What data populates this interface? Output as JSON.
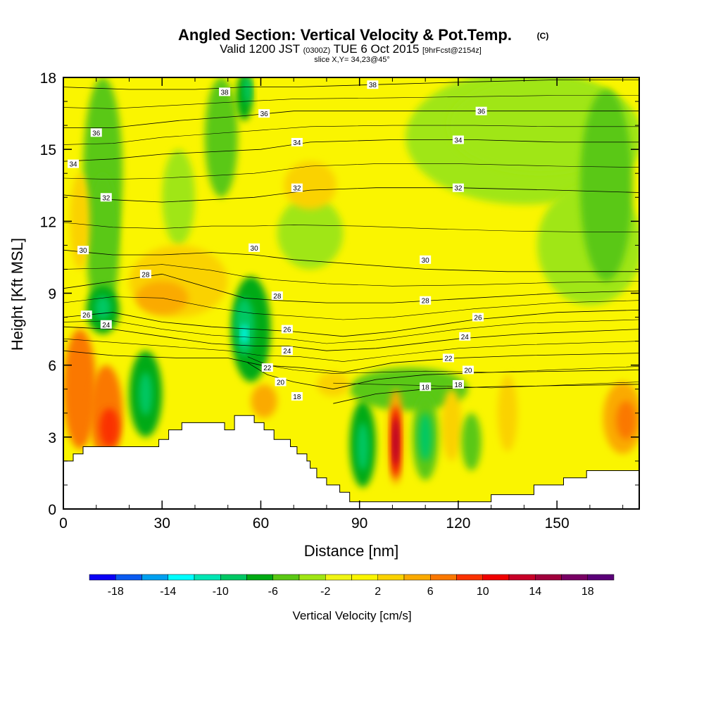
{
  "chart_data": {
    "type": "heatmap",
    "title": "Angled Section: Vertical Velocity & Pot.Temp.",
    "title_suffix": "(C)",
    "subtitle_parts": [
      "Valid 1200 JST",
      "(0300Z)",
      "TUE 6 Oct 2015",
      "[9hrFcst@2154z]"
    ],
    "slice_note": "slice X,Y= 34,23@45°",
    "xlabel": "Distance [nm]",
    "ylabel": "Height [Kft MSL]",
    "xlim": [
      0,
      175
    ],
    "ylim": [
      0,
      18
    ],
    "x_ticks": [
      0,
      30,
      60,
      90,
      120,
      150
    ],
    "y_ticks": [
      0,
      3,
      6,
      9,
      12,
      15,
      18
    ],
    "colorbar": {
      "title": "Vertical Velocity [cm/s]",
      "min": -20,
      "max": 20,
      "step": 2,
      "tick_labels": [
        -18,
        -14,
        -10,
        -6,
        -2,
        2,
        6,
        10,
        14,
        18
      ],
      "colors": [
        "#0a00f5",
        "#0a5af0",
        "#00a0f0",
        "#00ffff",
        "#00e6b4",
        "#00c864",
        "#00aa14",
        "#5ac814",
        "#a0e614",
        "#f0f514",
        "#faf500",
        "#fad200",
        "#faaa00",
        "#fa7800",
        "#fa3200",
        "#f00000",
        "#c80028",
        "#a0003c",
        "#780064",
        "#5a0078"
      ]
    },
    "theta_contours": {
      "unit": "C",
      "lines": [
        {
          "value": 18,
          "label_x": 120,
          "label_y": 5.2,
          "points": [
            [
              82,
              4.4
            ],
            [
              95,
              4.8
            ],
            [
              110,
              5.0
            ],
            [
              130,
              5.1
            ],
            [
              175,
              5.2
            ]
          ]
        },
        {
          "value": 20,
          "label_x": 66,
          "label_y": 5.3,
          "points": [
            [
              56,
              6.1
            ],
            [
              62,
              5.6
            ],
            [
              70,
              5.3
            ],
            [
              82,
              5.0
            ],
            [
              95,
              5.4
            ],
            [
              110,
              5.6
            ],
            [
              130,
              5.7
            ],
            [
              175,
              5.8
            ]
          ]
        },
        {
          "value": 22,
          "label_x": 62,
          "label_y": 5.9,
          "points": [
            [
              0,
              6.6
            ],
            [
              15,
              6.4
            ],
            [
              35,
              6.3
            ],
            [
              50,
              6.3
            ],
            [
              60,
              6.0
            ],
            [
              72,
              5.9
            ],
            [
              85,
              5.7
            ],
            [
              100,
              6.1
            ],
            [
              120,
              6.3
            ],
            [
              140,
              6.4
            ],
            [
              175,
              6.5
            ]
          ]
        },
        {
          "value": 24,
          "label_x": 13,
          "label_y": 7.7,
          "points": [
            [
              0,
              7.6
            ],
            [
              15,
              7.5
            ],
            [
              30,
              7.2
            ],
            [
              45,
              6.9
            ],
            [
              58,
              6.8
            ],
            [
              68,
              6.8
            ],
            [
              80,
              6.6
            ],
            [
              95,
              6.7
            ],
            [
              120,
              7.1
            ],
            [
              140,
              7.3
            ],
            [
              175,
              7.5
            ]
          ]
        },
        {
          "value": 26,
          "label_x": 7,
          "label_y": 8.1,
          "points": [
            [
              0,
              8.0
            ],
            [
              15,
              8.2
            ],
            [
              30,
              7.8
            ],
            [
              45,
              7.6
            ],
            [
              58,
              7.5
            ],
            [
              70,
              7.4
            ],
            [
              85,
              7.2
            ],
            [
              100,
              7.4
            ],
            [
              125,
              7.9
            ],
            [
              150,
              8.2
            ],
            [
              175,
              8.3
            ]
          ]
        },
        {
          "value": 28,
          "label_x": 25,
          "label_y": 9.8,
          "points": [
            [
              0,
              9.2
            ],
            [
              15,
              9.5
            ],
            [
              30,
              9.8
            ],
            [
              45,
              9.2
            ],
            [
              55,
              8.8
            ],
            [
              65,
              8.7
            ],
            [
              80,
              8.6
            ],
            [
              100,
              8.6
            ],
            [
              125,
              8.8
            ],
            [
              150,
              9.0
            ],
            [
              175,
              9.1
            ]
          ]
        },
        {
          "value": 30,
          "label_x": 6,
          "label_y": 10.8,
          "points": [
            [
              0,
              10.8
            ],
            [
              15,
              10.6
            ],
            [
              30,
              10.6
            ],
            [
              45,
              10.7
            ],
            [
              58,
              10.6
            ],
            [
              70,
              10.4
            ],
            [
              90,
              10.2
            ],
            [
              110,
              10.0
            ],
            [
              135,
              9.9
            ],
            [
              160,
              9.9
            ],
            [
              175,
              9.9
            ]
          ]
        },
        {
          "value": 32,
          "label_x": 13,
          "label_y": 13.0,
          "points": [
            [
              0,
              13.1
            ],
            [
              15,
              12.9
            ],
            [
              30,
              12.8
            ],
            [
              45,
              12.9
            ],
            [
              58,
              13.0
            ],
            [
              75,
              13.3
            ],
            [
              95,
              13.4
            ],
            [
              120,
              13.4
            ],
            [
              150,
              13.3
            ],
            [
              175,
              13.2
            ]
          ]
        },
        {
          "value": 34,
          "label_x": 3,
          "label_y": 14.4,
          "points": [
            [
              0,
              14.5
            ],
            [
              15,
              14.6
            ],
            [
              30,
              14.8
            ],
            [
              45,
              14.9
            ],
            [
              60,
              15.0
            ],
            [
              75,
              15.3
            ],
            [
              100,
              15.4
            ],
            [
              125,
              15.4
            ],
            [
              150,
              15.3
            ],
            [
              175,
              15.3
            ]
          ]
        },
        {
          "value": 36,
          "label_x": 10,
          "label_y": 15.7,
          "points": [
            [
              0,
              15.9
            ],
            [
              15,
              15.9
            ],
            [
              35,
              16.2
            ],
            [
              55,
              16.4
            ],
            [
              70,
              16.6
            ],
            [
              100,
              16.6
            ],
            [
              125,
              16.6
            ],
            [
              150,
              16.6
            ],
            [
              175,
              16.6
            ]
          ]
        },
        {
          "value": 38,
          "label_x": 49,
          "label_y": 17.4,
          "points": [
            [
              0,
              17.6
            ],
            [
              20,
              17.5
            ],
            [
              40,
              17.5
            ],
            [
              55,
              17.6
            ],
            [
              70,
              17.6
            ],
            [
              95,
              17.7
            ],
            [
              120,
              17.8
            ],
            [
              150,
              17.9
            ],
            [
              175,
              17.9
            ]
          ]
        }
      ],
      "unlabeled_levels": [
        19,
        21,
        23,
        25,
        27,
        29,
        31,
        33,
        35,
        37
      ]
    },
    "extra_contour_labels": [
      {
        "value": 38,
        "x": 94,
        "y": 17.7
      },
      {
        "value": 36,
        "x": 61,
        "y": 16.5
      },
      {
        "value": 36,
        "x": 127,
        "y": 16.6
      },
      {
        "value": 34,
        "x": 71,
        "y": 15.3
      },
      {
        "value": 34,
        "x": 120,
        "y": 15.4
      },
      {
        "value": 32,
        "x": 71,
        "y": 13.4
      },
      {
        "value": 32,
        "x": 120,
        "y": 13.4
      },
      {
        "value": 30,
        "x": 58,
        "y": 10.9
      },
      {
        "value": 30,
        "x": 110,
        "y": 10.4
      },
      {
        "value": 28,
        "x": 65,
        "y": 8.9
      },
      {
        "value": 28,
        "x": 110,
        "y": 8.7
      },
      {
        "value": 26,
        "x": 68,
        "y": 7.5
      },
      {
        "value": 26,
        "x": 126,
        "y": 8.0
      },
      {
        "value": 24,
        "x": 68,
        "y": 6.6
      },
      {
        "value": 24,
        "x": 122,
        "y": 7.2
      },
      {
        "value": 22,
        "x": 117,
        "y": 6.3
      },
      {
        "value": 20,
        "x": 123,
        "y": 5.8
      },
      {
        "value": 18,
        "x": 71,
        "y": 4.7
      },
      {
        "value": 18,
        "x": 110,
        "y": 5.1
      }
    ],
    "terrain": [
      [
        0,
        2.0
      ],
      [
        3,
        2.0
      ],
      [
        3,
        2.3
      ],
      [
        6,
        2.3
      ],
      [
        6,
        2.6
      ],
      [
        29,
        2.6
      ],
      [
        29,
        2.9
      ],
      [
        32,
        2.9
      ],
      [
        32,
        3.3
      ],
      [
        36,
        3.3
      ],
      [
        36,
        3.6
      ],
      [
        49,
        3.6
      ],
      [
        49,
        3.3
      ],
      [
        52,
        3.3
      ],
      [
        52,
        3.9
      ],
      [
        58,
        3.9
      ],
      [
        58,
        3.6
      ],
      [
        61,
        3.6
      ],
      [
        61,
        3.3
      ],
      [
        64,
        3.3
      ],
      [
        64,
        2.9
      ],
      [
        69,
        2.9
      ],
      [
        69,
        2.6
      ],
      [
        71,
        2.6
      ],
      [
        71,
        2.3
      ],
      [
        74,
        2.3
      ],
      [
        74,
        2.0
      ],
      [
        75,
        2.0
      ],
      [
        75,
        1.7
      ],
      [
        77,
        1.7
      ],
      [
        77,
        1.3
      ],
      [
        80,
        1.3
      ],
      [
        80,
        1.0
      ],
      [
        84,
        1.0
      ],
      [
        84,
        0.7
      ],
      [
        87,
        0.7
      ],
      [
        87,
        0.3
      ],
      [
        130,
        0.3
      ],
      [
        130,
        0.6
      ],
      [
        143,
        0.6
      ],
      [
        143,
        1.0
      ],
      [
        152,
        1.0
      ],
      [
        152,
        1.3
      ],
      [
        159,
        1.3
      ],
      [
        159,
        1.6
      ],
      [
        175,
        1.6
      ],
      [
        175,
        0
      ],
      [
        0,
        0
      ]
    ],
    "velocity_features": [
      {
        "sign": "up",
        "peak": 15,
        "x": 101,
        "y": 2.8,
        "note": "strong updraft core"
      },
      {
        "sign": "down",
        "peak": -13,
        "x": 55,
        "y": 7.3,
        "note": "downdraft core"
      },
      {
        "sign": "down",
        "peak": -11,
        "x": 12,
        "y": 8.3
      },
      {
        "sign": "down",
        "peak": -10,
        "x": 25,
        "y": 4.8
      },
      {
        "sign": "down",
        "peak": -10,
        "x": 91,
        "y": 2.8
      },
      {
        "sign": "down",
        "peak": -9,
        "x": 56,
        "y": 17.5
      },
      {
        "sign": "up",
        "peak": 9,
        "x": 12,
        "y": 4.2
      },
      {
        "sign": "up",
        "peak": 7,
        "x": 171,
        "y": 3.7
      }
    ]
  }
}
